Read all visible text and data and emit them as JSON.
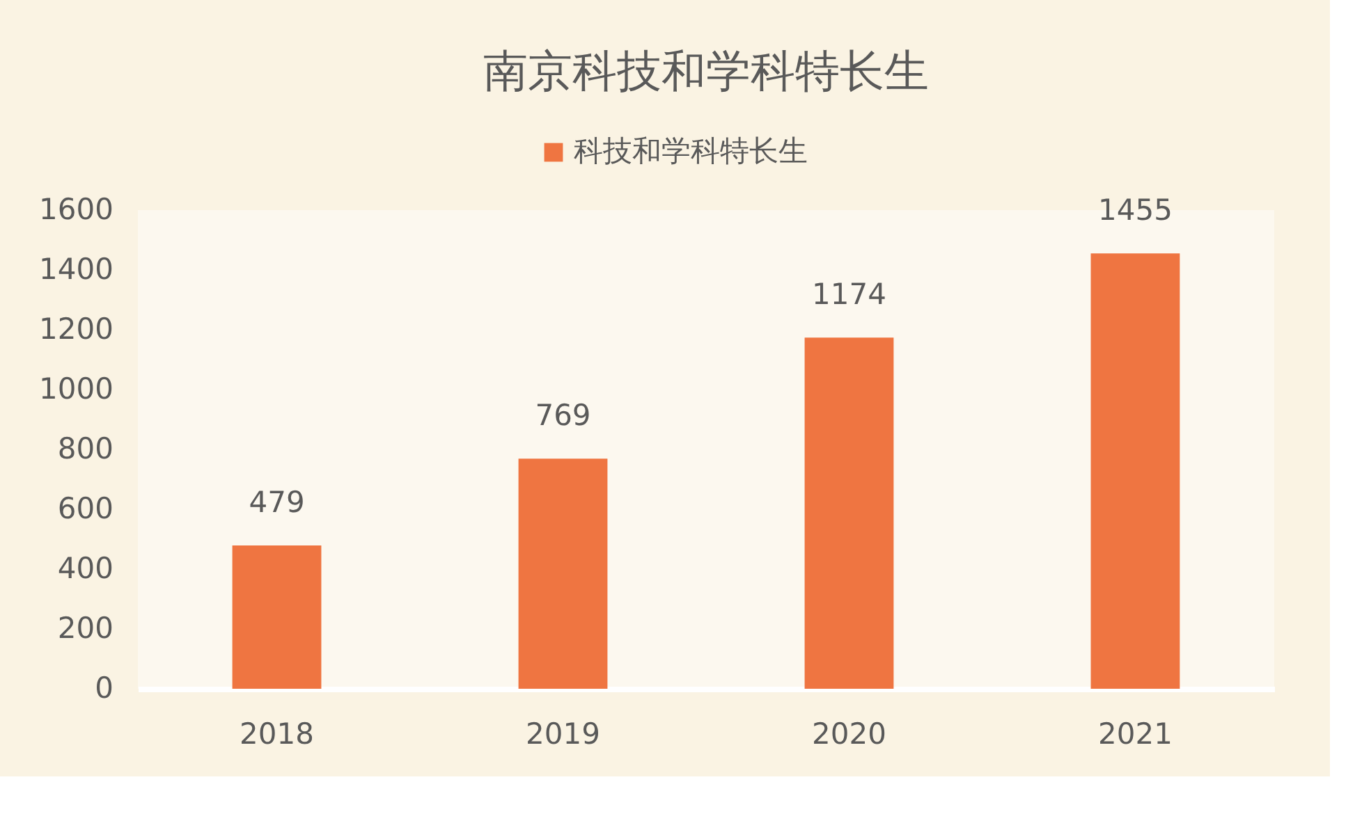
{
  "chart_data": {
    "type": "bar",
    "title": "南京科技和学科特长生",
    "categories": [
      "2018",
      "2019",
      "2020",
      "2021"
    ],
    "series": [
      {
        "name": "科技和学科特长生",
        "color": "#ef7541",
        "values": [
          479,
          769,
          1174,
          1455
        ]
      }
    ],
    "ylim": [
      0,
      1600
    ],
    "yticks": [
      0,
      200,
      400,
      600,
      800,
      1000,
      1200,
      1400,
      1600
    ],
    "legend": "top",
    "data_labels": true
  }
}
